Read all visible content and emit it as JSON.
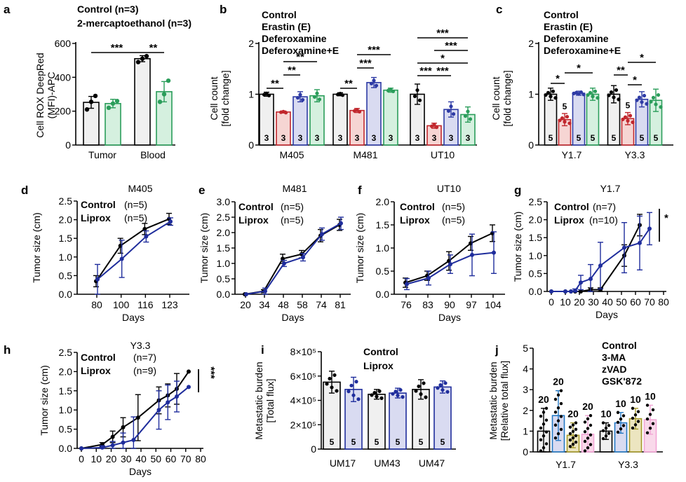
{
  "colors": {
    "black": "#000000",
    "control_fill": "#f0f0f0",
    "erastin": "#c1272d",
    "erastin_fill": "#f6d5d3",
    "defer": "#2e3ba5",
    "defer_fill": "#d9dbf1",
    "deferE": "#2a9d5a",
    "deferE_fill": "#d5f0df",
    "grey_label": "#a6a6a6",
    "green_label": "#2a9d5a",
    "light_blue_label": "#8fa6df",
    "liprox": "#1f2d9c",
    "ma3": "#2378c4",
    "zvad": "#a59a2b",
    "gsk": "#f2a5d6",
    "tan_fill": "#ece5c0",
    "pink_fill": "#f9d9ea"
  },
  "chart_data": [
    {
      "id": "a",
      "panel_label": "a",
      "type": "bar",
      "ylabel": [
        "Cell ROX DeepRed",
        "(MFI)-APC"
      ],
      "ylim": [
        0,
        600
      ],
      "yticks": [
        "0",
        "200",
        "400",
        "600"
      ],
      "categories": [
        "Tumor",
        "Blood"
      ],
      "legend": [
        "Control  (n=3)",
        "2-mercaptoethanol  (n=3)"
      ],
      "series": [
        {
          "name": "Control",
          "values": [
            252,
            510
          ],
          "err": [
            35,
            18
          ],
          "points": [
            [
              210,
              255,
              290
            ],
            [
              490,
              510,
              525
            ]
          ]
        },
        {
          "name": "2-mercaptoethanol",
          "values": [
            245,
            315
          ],
          "err": [
            25,
            60
          ],
          "points": [
            [
              220,
              245,
              260
            ],
            [
              255,
              300,
              380
            ]
          ]
        }
      ],
      "significance": [
        {
          "label": "***",
          "from": "Tumor Control",
          "to": "Blood Control"
        },
        {
          "label": "**",
          "from": "Blood Control",
          "to": "Blood 2-ME"
        }
      ]
    },
    {
      "id": "b",
      "panel_label": "b",
      "type": "bar",
      "ylabel": [
        "Cell count",
        "[fold change]"
      ],
      "ylim": [
        0,
        2
      ],
      "yticks": [
        "0",
        "1",
        "2"
      ],
      "categories": [
        "M405",
        "M481",
        "UT10"
      ],
      "legend": [
        "Control",
        "Erastin (E)",
        "Deferoxamine",
        "Deferoxamine+E"
      ],
      "series": [
        {
          "name": "Control",
          "values": [
            1.0,
            1.0,
            1.0
          ],
          "err": [
            0.04,
            0.03,
            0.2
          ],
          "n": [
            "3",
            "3",
            "3"
          ]
        },
        {
          "name": "Erastin (E)",
          "values": [
            0.65,
            0.68,
            0.38
          ],
          "err": [
            0.02,
            0.04,
            0.05
          ],
          "n": [
            "3",
            "3",
            "3"
          ]
        },
        {
          "name": "Deferoxamine",
          "values": [
            0.95,
            1.23,
            0.7
          ],
          "err": [
            0.1,
            0.1,
            0.15
          ],
          "n": [
            "3",
            "3",
            "3"
          ]
        },
        {
          "name": "Deferoxamine+E",
          "values": [
            0.97,
            1.08,
            0.6
          ],
          "err": [
            0.12,
            0.04,
            0.15
          ],
          "n": [
            "3",
            "3",
            "3"
          ]
        }
      ],
      "significance": [
        "**",
        "**",
        "**",
        "**",
        "***",
        "***",
        "***",
        "***",
        "*",
        "***",
        "***"
      ]
    },
    {
      "id": "c",
      "panel_label": "c",
      "type": "bar",
      "ylabel": [
        "Cell count",
        "[fold change]"
      ],
      "ylim": [
        0,
        2
      ],
      "yticks": [
        "0",
        "1",
        "2"
      ],
      "categories": [
        "Y1.7",
        "Y3.3"
      ],
      "legend": [
        "Control",
        "Erastin (E)",
        "Deferoxamine",
        "Deferoxamine+E"
      ],
      "series": [
        {
          "name": "Control",
          "values": [
            1.0,
            1.0
          ],
          "err": [
            0.12,
            0.17
          ],
          "n": [
            "5",
            "5"
          ]
        },
        {
          "name": "Erastin (E)",
          "values": [
            0.5,
            0.52
          ],
          "err": [
            0.12,
            0.12
          ],
          "n": [
            "5",
            "5"
          ]
        },
        {
          "name": "Deferoxamine",
          "values": [
            1.02,
            0.9
          ],
          "err": [
            0.04,
            0.15
          ],
          "n": [
            "5",
            "5"
          ]
        },
        {
          "name": "Deferoxamine+E",
          "values": [
            1.0,
            0.88
          ],
          "err": [
            0.12,
            0.22
          ],
          "n": [
            "5",
            "5"
          ]
        }
      ],
      "significance": [
        "*",
        "*",
        "**",
        "*",
        "*"
      ]
    },
    {
      "id": "d",
      "panel_label": "d",
      "type": "line",
      "title": "M405",
      "xlabel": "Days",
      "ylabel": "Tumor size (cm)",
      "x": [
        "80",
        "100",
        "116",
        "123"
      ],
      "ylim": [
        0,
        2.5
      ],
      "yticks": [
        "0.0",
        "0.5",
        "1.0",
        "1.5",
        "2.0",
        "2.5"
      ],
      "legend": [
        {
          "name": "Control",
          "n": "(n=5)"
        },
        {
          "name": "Liprox",
          "n": "(n=5)"
        }
      ],
      "series": [
        {
          "name": "Control",
          "values": [
            0.35,
            1.3,
            1.75,
            2.02
          ],
          "err": [
            0.15,
            0.2,
            0.15,
            0.15
          ]
        },
        {
          "name": "Liprox",
          "values": [
            0.4,
            0.95,
            1.55,
            1.95
          ],
          "err": [
            0.4,
            0.5,
            0.15,
            0.1
          ]
        }
      ]
    },
    {
      "id": "e",
      "panel_label": "e",
      "type": "line",
      "title": "M481",
      "xlabel": "Days",
      "ylabel": "Tumor size (cm)",
      "x": [
        "20",
        "34",
        "48",
        "58",
        "74",
        "81"
      ],
      "ylim": [
        0,
        3.0
      ],
      "yticks": [
        "0.0",
        "0.5",
        "1.0",
        "1.5",
        "2.0",
        "2.5",
        "3.0"
      ],
      "legend": [
        {
          "name": "Control",
          "n": "(n=5)"
        },
        {
          "name": "Liprox",
          "n": "(n=5)"
        }
      ],
      "series": [
        {
          "name": "Control",
          "values": [
            0.0,
            0.1,
            1.15,
            1.3,
            1.9,
            2.25
          ],
          "err": [
            0,
            0.05,
            0.15,
            0.12,
            0.2,
            0.18
          ]
        },
        {
          "name": "Liprox",
          "values": [
            0.0,
            0.1,
            1.0,
            1.2,
            1.95,
            2.3
          ],
          "err": [
            0,
            0.1,
            0.1,
            0.12,
            0.2,
            0.2
          ]
        }
      ]
    },
    {
      "id": "f",
      "panel_label": "f",
      "type": "line",
      "title": "UT10",
      "xlabel": "Days",
      "ylabel": "Tumor size (cm)",
      "x": [
        "76",
        "83",
        "90",
        "97",
        "104"
      ],
      "ylim": [
        0,
        2.0
      ],
      "yticks": [
        "0.0",
        "0.5",
        "1.0",
        "1.5",
        "2.0"
      ],
      "legend": [
        {
          "name": "Control",
          "n": "(n=5)"
        },
        {
          "name": "Liprox",
          "n": "(n=5)"
        }
      ],
      "series": [
        {
          "name": "Control",
          "values": [
            0.25,
            0.4,
            0.72,
            1.1,
            1.32
          ],
          "err": [
            0.1,
            0.1,
            0.2,
            0.15,
            0.18
          ]
        },
        {
          "name": "Liprox",
          "values": [
            0.22,
            0.35,
            0.65,
            0.85,
            0.9
          ],
          "err": [
            0.12,
            0.15,
            0.2,
            0.45,
            0.45
          ]
        }
      ]
    },
    {
      "id": "g",
      "panel_label": "g",
      "type": "line",
      "title": "Y1.7",
      "xlabel": "Days",
      "ylabel": "Tumor size (cm)",
      "ylim": [
        0,
        2.5
      ],
      "xlim": [
        0,
        80
      ],
      "xticks": [
        "0",
        "10",
        "20",
        "30",
        "40",
        "50",
        "60",
        "70",
        "80"
      ],
      "yticks": [
        "0.0",
        "0.5",
        "1.0",
        "1.5",
        "2.0",
        "2.5"
      ],
      "legend": [
        {
          "name": "Control",
          "n": "(n=7)"
        },
        {
          "name": "Liprox",
          "n": "(n=10)"
        }
      ],
      "significance": "*",
      "series": [
        {
          "name": "Control",
          "x": [
            0,
            10,
            14,
            17,
            21,
            28,
            35,
            52,
            63
          ],
          "values": [
            0,
            0,
            0,
            0,
            0,
            0.05,
            0.05,
            1.0,
            1.85
          ],
          "err": [
            0,
            0,
            0,
            0,
            0,
            0.05,
            0.05,
            0.3,
            0.3
          ]
        },
        {
          "name": "Liprox",
          "x": [
            0,
            10,
            14,
            17,
            21,
            28,
            35,
            52,
            63,
            70
          ],
          "values": [
            0,
            0,
            0,
            0.02,
            0.25,
            0.35,
            0.72,
            1.22,
            1.35,
            1.75
          ],
          "err": [
            0,
            0,
            0,
            0.05,
            0.2,
            0.4,
            0.65,
            0.7,
            0.75,
            0.45
          ]
        }
      ]
    },
    {
      "id": "h",
      "panel_label": "h",
      "type": "line",
      "title": "Y3.3",
      "xlabel": "Days",
      "ylabel": "Tumor size (cm)",
      "ylim": [
        0,
        2.5
      ],
      "xlim": [
        0,
        80
      ],
      "xticks": [
        "0",
        "10",
        "20",
        "30",
        "40",
        "50",
        "60",
        "70",
        "80"
      ],
      "yticks": [
        "0.0",
        "0.5",
        "1.0",
        "1.5",
        "2.0",
        "2.5"
      ],
      "legend": [
        {
          "name": "Control",
          "n": "(n=7)"
        },
        {
          "name": "Liprox",
          "n": "(n=9)"
        }
      ],
      "significance": "***",
      "series": [
        {
          "name": "Control",
          "x": [
            0,
            14,
            21,
            28,
            38,
            52,
            58,
            64,
            72
          ],
          "values": [
            0,
            0.1,
            0.3,
            0.55,
            0.8,
            1.25,
            1.38,
            1.55,
            2.0
          ],
          "err": [
            0,
            0.05,
            0.15,
            0.25,
            0.6,
            0.35,
            0.3,
            0.4,
            0
          ]
        },
        {
          "name": "Liprox",
          "x": [
            0,
            14,
            21,
            28,
            35,
            52,
            58,
            64,
            72
          ],
          "values": [
            0,
            0.02,
            0.08,
            0.15,
            0.22,
            1.0,
            1.2,
            1.35,
            1.6
          ],
          "err": [
            0,
            0.05,
            0.1,
            0.25,
            0.6,
            0.5,
            0.45,
            0.4,
            0
          ]
        }
      ]
    },
    {
      "id": "i",
      "panel_label": "i",
      "type": "bar",
      "ylabel": [
        "Metastatic burden",
        "[Total flux]"
      ],
      "ylim": [
        0,
        800000
      ],
      "yticks": [
        "0",
        "2×10⁵",
        "4×10⁵",
        "6×10⁵",
        "8×10⁵"
      ],
      "categories": [
        "UM17",
        "UM43",
        "UM47"
      ],
      "legend": [
        "Control",
        "Liprox"
      ],
      "series": [
        {
          "name": "Control",
          "values": [
            550000,
            450000,
            490000
          ],
          "err": [
            90000,
            40000,
            80000
          ],
          "n": [
            "5",
            "5",
            "5"
          ]
        },
        {
          "name": "Liprox",
          "values": [
            490000,
            460000,
            510000
          ],
          "err": [
            100000,
            40000,
            50000
          ],
          "n": [
            "5",
            "5",
            "5"
          ]
        }
      ]
    },
    {
      "id": "j",
      "panel_label": "j",
      "type": "bar",
      "ylabel": [
        "Metastatic burden",
        "[Relative total flux]"
      ],
      "ylim": [
        0,
        5
      ],
      "yticks": [
        "0",
        "1",
        "2",
        "3",
        "4",
        "5"
      ],
      "categories": [
        "Y1.7",
        "Y3.3"
      ],
      "legend": [
        "Control",
        "3-MA",
        "zVAD",
        "GSK'872"
      ],
      "series": [
        {
          "name": "Control",
          "values": [
            1.0,
            1.0
          ],
          "err": [
            1.1,
            0.4
          ],
          "n_top": [
            "20",
            "10"
          ]
        },
        {
          "name": "3-MA",
          "values": [
            1.75,
            1.4
          ],
          "err": [
            1.2,
            0.5
          ],
          "n_top": [
            "20",
            "10"
          ]
        },
        {
          "name": "zVAD",
          "values": [
            0.8,
            1.6
          ],
          "err": [
            0.6,
            0.5
          ],
          "n_top": [
            "20",
            "10"
          ]
        },
        {
          "name": "GSK'872",
          "values": [
            0.85,
            1.55
          ],
          "err": [
            0.9,
            0.7
          ],
          "n_top": [
            "20",
            "10"
          ]
        }
      ]
    }
  ]
}
